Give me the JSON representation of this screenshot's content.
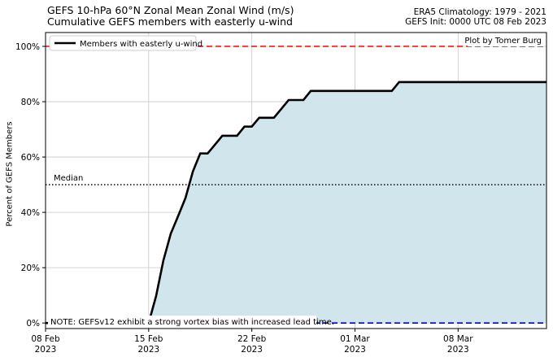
{
  "header": {
    "title_line1": "GEFS 10-hPa 60°N Zonal Mean Zonal Wind (m/s)",
    "title_line2": "Cumulative GEFS members with easterly u-wind",
    "right_line1": "ERA5 Climatology: 1979 - 2021",
    "right_line2": "GEFS Init: 0000 UTC 08 Feb 2023"
  },
  "chart_data": {
    "type": "area",
    "title": "GEFS 10-hPa 60°N Zonal Mean Zonal Wind (m/s)",
    "subtitle": "Cumulative GEFS members with easterly u-wind",
    "ylabel": "Percent of GEFS Members",
    "xlabel": "",
    "ylim": [
      -2,
      105
    ],
    "xlim": [
      "2023-02-08",
      "2023-03-14"
    ],
    "y_ticks": [
      0,
      20,
      40,
      60,
      80,
      100
    ],
    "y_tick_labels": [
      "0%",
      "20%",
      "40%",
      "60%",
      "80%",
      "100%"
    ],
    "x_ticks": [
      "2023-02-08",
      "2023-02-15",
      "2023-02-22",
      "2023-03-01",
      "2023-03-08"
    ],
    "x_tick_labels": [
      {
        "top": "08 Feb",
        "bottom": "2023"
      },
      {
        "top": "15 Feb",
        "bottom": "2023"
      },
      {
        "top": "22 Feb",
        "bottom": "2023"
      },
      {
        "top": "01 Mar",
        "bottom": "2023"
      },
      {
        "top": "08 Mar",
        "bottom": "2023"
      }
    ],
    "grid": true,
    "legend_position": "top-left",
    "series": [
      {
        "name": "Members with easterly u-wind",
        "color": "#000000",
        "fill": "#d1e5ec",
        "x": [
          "2023-02-08",
          "2023-02-09",
          "2023-02-10",
          "2023-02-11",
          "2023-02-12",
          "2023-02-13",
          "2023-02-14",
          "2023-02-15",
          "2023-02-15 12:00",
          "2023-02-16",
          "2023-02-16 12:00",
          "2023-02-17",
          "2023-02-17 12:00",
          "2023-02-18",
          "2023-02-18 12:00",
          "2023-02-19",
          "2023-02-19 12:00",
          "2023-02-20",
          "2023-02-20 12:00",
          "2023-02-21",
          "2023-02-21 12:00",
          "2023-02-22",
          "2023-02-22 12:00",
          "2023-02-23",
          "2023-02-23 12:00",
          "2023-02-24",
          "2023-02-24 12:00",
          "2023-02-25",
          "2023-02-25 12:00",
          "2023-02-26",
          "2023-02-26 12:00",
          "2023-02-27",
          "2023-02-28",
          "2023-03-01",
          "2023-03-02",
          "2023-03-03",
          "2023-03-03 12:00",
          "2023-03-04",
          "2023-03-05",
          "2023-03-06",
          "2023-03-07",
          "2023-03-08",
          "2023-03-10",
          "2023-03-12",
          "2023-03-14"
        ],
        "y": [
          0,
          0,
          0,
          0,
          0,
          0,
          0,
          0,
          9.7,
          22.6,
          32.3,
          38.7,
          45.2,
          54.8,
          61.3,
          61.3,
          64.5,
          67.7,
          67.7,
          67.7,
          71.0,
          71.0,
          74.2,
          74.2,
          74.2,
          77.4,
          80.6,
          80.6,
          80.6,
          83.9,
          83.9,
          83.9,
          83.9,
          83.9,
          83.9,
          83.9,
          83.9,
          87.1,
          87.1,
          87.1,
          87.1,
          87.1,
          87.1,
          87.1,
          87.1
        ]
      }
    ],
    "reference_lines": [
      {
        "name": "100% line",
        "y": 100,
        "color": "#ff0000",
        "style": "dashed"
      },
      {
        "name": "Median",
        "y": 50,
        "color": "#000000",
        "style": "dotted",
        "label": "Median"
      },
      {
        "name": "0% line",
        "y": 0,
        "color": "#0000dd",
        "style": "dashed"
      }
    ],
    "annotations": {
      "credit": "Plot by Tomer Burg",
      "note": "NOTE: GEFSv12 exhibit a strong vortex bias with increased lead time."
    }
  }
}
